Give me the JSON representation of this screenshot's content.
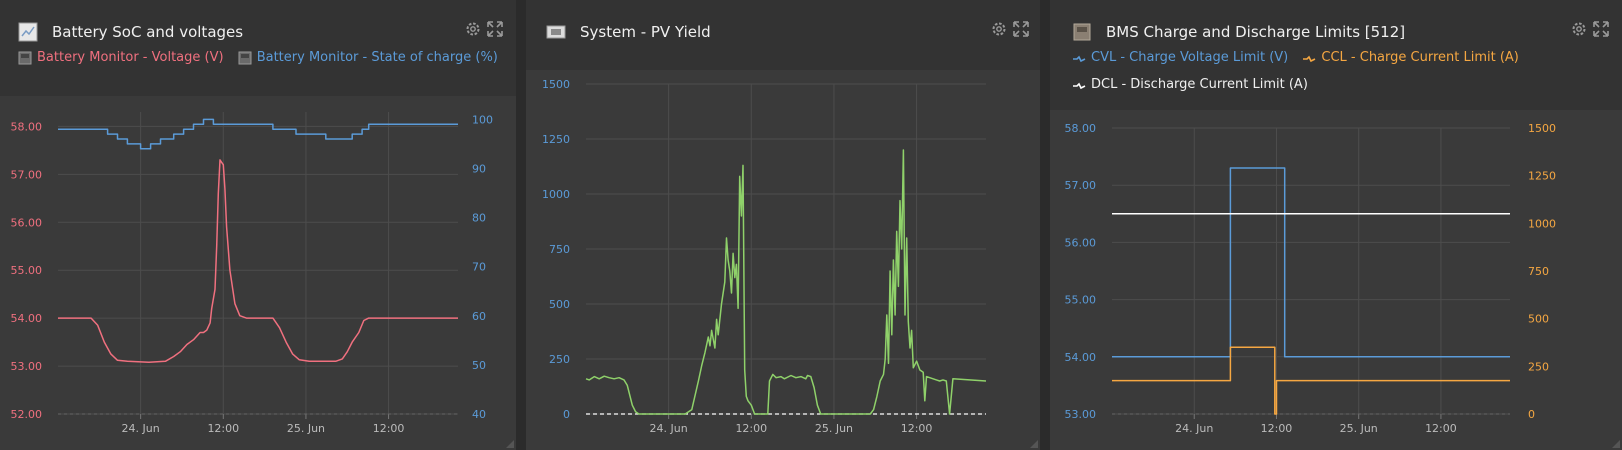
{
  "colors": {
    "voltage": "#f0707f",
    "soc": "#5b9bd8",
    "pv": "#8fd16a",
    "cvl": "#5b9bd8",
    "ccl": "#f5a742",
    "dcl": "#ffffff",
    "grid": "#4d4d4d",
    "tick": "#bbbbbb"
  },
  "panels": [
    {
      "id": "soc",
      "title": "Battery SoC and voltages",
      "icon": "chart-icon",
      "legend": [
        {
          "label": "Battery Monitor - Voltage (V)",
          "icon": "battery-monitor-icon",
          "color": "#f0707f"
        },
        {
          "label": "Battery Monitor - State of charge (%)",
          "icon": "battery-monitor-icon",
          "color": "#5b9bd8"
        }
      ]
    },
    {
      "id": "pv",
      "title": "System - PV Yield",
      "icon": "system-icon",
      "legend": []
    },
    {
      "id": "bms",
      "title": "BMS Charge and Discharge Limits [512]",
      "icon": "bms-icon",
      "legend": [
        {
          "label": "CVL - Charge Voltage Limit (V)",
          "icon": "line-icon",
          "color": "#5b9bd8"
        },
        {
          "label": "CCL - Charge Current Limit (A)",
          "icon": "line-icon",
          "color": "#f5a742"
        },
        {
          "label": "DCL - Discharge Current Limit (A)",
          "icon": "line-icon",
          "color": "#ffffff"
        }
      ]
    }
  ],
  "chart_data": [
    {
      "type": "line",
      "title": "Battery SoC and voltages",
      "xrange": [
        0,
        2.42
      ],
      "x_unit": "days from 23 Jun 12:00",
      "x_ticks": [
        {
          "x": 0.5,
          "label": "24. Jun"
        },
        {
          "x": 1.0,
          "label": "12:00"
        },
        {
          "x": 1.5,
          "label": "25. Jun"
        },
        {
          "x": 2.0,
          "label": "12:00"
        }
      ],
      "y_left": {
        "range": [
          52,
          58.3
        ],
        "ticks": [
          52,
          53,
          54,
          55,
          56,
          57,
          58
        ],
        "labels": [
          "52.00",
          "53.00",
          "54.00",
          "55.00",
          "56.00",
          "57.00",
          "58.00"
        ],
        "color": "#f0707f"
      },
      "y_right": {
        "range": [
          40,
          101.5
        ],
        "ticks": [
          40,
          50,
          60,
          70,
          80,
          90,
          100
        ],
        "labels": [
          "40",
          "50",
          "60",
          "70",
          "80",
          "90",
          "100"
        ],
        "color": "#5b9bd8"
      },
      "grid": true,
      "series": [
        {
          "name": "Battery Monitor - Voltage (V)",
          "axis": "left",
          "color": "#f0707f",
          "step": false,
          "points": [
            [
              0,
              54.0
            ],
            [
              0.2,
              54.0
            ],
            [
              0.24,
              53.85
            ],
            [
              0.28,
              53.5
            ],
            [
              0.32,
              53.25
            ],
            [
              0.36,
              53.12
            ],
            [
              0.42,
              53.1
            ],
            [
              0.55,
              53.08
            ],
            [
              0.65,
              53.1
            ],
            [
              0.7,
              53.2
            ],
            [
              0.74,
              53.3
            ],
            [
              0.78,
              53.45
            ],
            [
              0.82,
              53.55
            ],
            [
              0.86,
              53.7
            ],
            [
              0.88,
              53.7
            ],
            [
              0.9,
              53.75
            ],
            [
              0.92,
              53.9
            ],
            [
              0.93,
              54.2
            ],
            [
              0.95,
              54.6
            ],
            [
              0.96,
              55.5
            ],
            [
              0.97,
              56.6
            ],
            [
              0.98,
              57.3
            ],
            [
              0.99,
              57.25
            ],
            [
              1.0,
              57.2
            ],
            [
              1.01,
              56.7
            ],
            [
              1.02,
              55.9
            ],
            [
              1.04,
              55.0
            ],
            [
              1.07,
              54.3
            ],
            [
              1.1,
              54.05
            ],
            [
              1.14,
              54.0
            ],
            [
              1.3,
              54.0
            ],
            [
              1.34,
              53.8
            ],
            [
              1.38,
              53.5
            ],
            [
              1.42,
              53.25
            ],
            [
              1.46,
              53.13
            ],
            [
              1.52,
              53.1
            ],
            [
              1.68,
              53.1
            ],
            [
              1.72,
              53.15
            ],
            [
              1.75,
              53.3
            ],
            [
              1.78,
              53.5
            ],
            [
              1.82,
              53.7
            ],
            [
              1.85,
              53.95
            ],
            [
              1.88,
              54.0
            ],
            [
              2.0,
              54.0
            ],
            [
              2.42,
              54.0
            ]
          ]
        },
        {
          "name": "Battery Monitor - State of charge (%)",
          "axis": "right",
          "color": "#5b9bd8",
          "step": true,
          "points": [
            [
              0,
              98
            ],
            [
              0.3,
              98
            ],
            [
              0.3,
              97
            ],
            [
              0.36,
              97
            ],
            [
              0.36,
              96
            ],
            [
              0.42,
              96
            ],
            [
              0.42,
              95
            ],
            [
              0.5,
              95
            ],
            [
              0.5,
              94
            ],
            [
              0.56,
              94
            ],
            [
              0.56,
              95
            ],
            [
              0.62,
              95
            ],
            [
              0.62,
              96
            ],
            [
              0.7,
              96
            ],
            [
              0.7,
              97
            ],
            [
              0.76,
              97
            ],
            [
              0.76,
              98
            ],
            [
              0.82,
              98
            ],
            [
              0.82,
              99
            ],
            [
              0.88,
              99
            ],
            [
              0.88,
              100
            ],
            [
              0.94,
              100
            ],
            [
              0.94,
              99
            ],
            [
              1.3,
              99
            ],
            [
              1.3,
              98
            ],
            [
              1.44,
              98
            ],
            [
              1.44,
              97
            ],
            [
              1.62,
              97
            ],
            [
              1.62,
              96
            ],
            [
              1.78,
              96
            ],
            [
              1.78,
              97
            ],
            [
              1.84,
              97
            ],
            [
              1.84,
              98
            ],
            [
              1.88,
              98
            ],
            [
              1.88,
              99
            ],
            [
              2.42,
              99
            ]
          ]
        }
      ]
    },
    {
      "type": "line",
      "title": "System - PV Yield",
      "xrange": [
        0,
        2.42
      ],
      "x_unit": "days from 23 Jun 12:00",
      "x_ticks": [
        {
          "x": 0.5,
          "label": "24. Jun"
        },
        {
          "x": 1.0,
          "label": "12:00"
        },
        {
          "x": 1.5,
          "label": "25. Jun"
        },
        {
          "x": 2.0,
          "label": "12:00"
        }
      ],
      "y_left": {
        "range": [
          0,
          1500
        ],
        "ticks": [
          0,
          250,
          500,
          750,
          1000,
          1250,
          1500
        ],
        "labels": [
          "0",
          "250",
          "500",
          "750",
          "1000",
          "1250",
          "1500"
        ],
        "color": "#5b9bd8"
      },
      "grid": true,
      "baseline": 0,
      "series": [
        {
          "name": "PV Yield",
          "axis": "left",
          "color": "#8fd16a",
          "step": false,
          "points": [
            [
              0,
              160
            ],
            [
              0.02,
              155
            ],
            [
              0.05,
              170
            ],
            [
              0.08,
              160
            ],
            [
              0.11,
              172
            ],
            [
              0.14,
              165
            ],
            [
              0.17,
              160
            ],
            [
              0.2,
              165
            ],
            [
              0.23,
              155
            ],
            [
              0.25,
              130
            ],
            [
              0.28,
              40
            ],
            [
              0.3,
              10
            ],
            [
              0.32,
              0
            ],
            [
              0.6,
              0
            ],
            [
              0.64,
              20
            ],
            [
              0.68,
              150
            ],
            [
              0.7,
              220
            ],
            [
              0.72,
              280
            ],
            [
              0.74,
              350
            ],
            [
              0.75,
              310
            ],
            [
              0.76,
              380
            ],
            [
              0.78,
              300
            ],
            [
              0.79,
              430
            ],
            [
              0.8,
              360
            ],
            [
              0.82,
              500
            ],
            [
              0.84,
              600
            ],
            [
              0.85,
              800
            ],
            [
              0.86,
              700
            ],
            [
              0.87,
              650
            ],
            [
              0.88,
              550
            ],
            [
              0.89,
              730
            ],
            [
              0.9,
              620
            ],
            [
              0.91,
              680
            ],
            [
              0.92,
              480
            ],
            [
              0.93,
              1080
            ],
            [
              0.94,
              900
            ],
            [
              0.95,
              1130
            ],
            [
              0.96,
              200
            ],
            [
              0.97,
              80
            ],
            [
              0.98,
              60
            ],
            [
              1.0,
              40
            ],
            [
              1.02,
              0
            ],
            [
              1.1,
              0
            ],
            [
              1.11,
              150
            ],
            [
              1.13,
              180
            ],
            [
              1.15,
              165
            ],
            [
              1.18,
              170
            ],
            [
              1.2,
              160
            ],
            [
              1.24,
              175
            ],
            [
              1.27,
              165
            ],
            [
              1.3,
              170
            ],
            [
              1.33,
              160
            ],
            [
              1.34,
              175
            ],
            [
              1.36,
              170
            ],
            [
              1.38,
              120
            ],
            [
              1.4,
              40
            ],
            [
              1.42,
              0
            ],
            [
              1.72,
              0
            ],
            [
              1.74,
              20
            ],
            [
              1.76,
              80
            ],
            [
              1.78,
              150
            ],
            [
              1.8,
              180
            ],
            [
              1.81,
              250
            ],
            [
              1.82,
              450
            ],
            [
              1.83,
              230
            ],
            [
              1.84,
              650
            ],
            [
              1.85,
              360
            ],
            [
              1.86,
              700
            ],
            [
              1.87,
              450
            ],
            [
              1.88,
              830
            ],
            [
              1.89,
              580
            ],
            [
              1.9,
              970
            ],
            [
              1.91,
              750
            ],
            [
              1.92,
              1200
            ],
            [
              1.93,
              450
            ],
            [
              1.94,
              800
            ],
            [
              1.95,
              420
            ],
            [
              1.96,
              300
            ],
            [
              1.97,
              380
            ],
            [
              1.98,
              210
            ],
            [
              2.0,
              240
            ],
            [
              2.02,
              200
            ],
            [
              2.04,
              190
            ],
            [
              2.05,
              60
            ],
            [
              2.06,
              170
            ],
            [
              2.08,
              165
            ],
            [
              2.1,
              160
            ],
            [
              2.12,
              155
            ],
            [
              2.14,
              150
            ],
            [
              2.16,
              155
            ],
            [
              2.18,
              150
            ],
            [
              2.2,
              0
            ],
            [
              2.22,
              160
            ],
            [
              2.42,
              150
            ]
          ]
        }
      ]
    },
    {
      "type": "line",
      "title": "BMS Charge and Discharge Limits [512]",
      "xrange": [
        0,
        2.42
      ],
      "x_unit": "days from 23 Jun 12:00",
      "x_ticks": [
        {
          "x": 0.5,
          "label": "24. Jun"
        },
        {
          "x": 1.0,
          "label": "12:00"
        },
        {
          "x": 1.5,
          "label": "25. Jun"
        },
        {
          "x": 2.0,
          "label": "12:00"
        }
      ],
      "y_left": {
        "range": [
          53,
          58
        ],
        "ticks": [
          53,
          54,
          55,
          56,
          57,
          58
        ],
        "labels": [
          "53.00",
          "54.00",
          "55.00",
          "56.00",
          "57.00",
          "58.00"
        ],
        "color": "#5b9bd8"
      },
      "y_right": {
        "range": [
          0,
          1500
        ],
        "ticks": [
          0,
          250,
          500,
          750,
          1000,
          1250,
          1500
        ],
        "labels": [
          "0",
          "250",
          "500",
          "750",
          "1000",
          "1250",
          "1500"
        ],
        "color": "#f5a742"
      },
      "grid": true,
      "series": [
        {
          "name": "CVL - Charge Voltage Limit (V)",
          "axis": "left",
          "color": "#5b9bd8",
          "step": true,
          "points": [
            [
              0,
              54.0
            ],
            [
              0.72,
              54.0
            ],
            [
              0.72,
              57.3
            ],
            [
              1.05,
              57.3
            ],
            [
              1.05,
              54.0
            ],
            [
              2.42,
              54.0
            ]
          ]
        },
        {
          "name": "CCL - Charge Current Limit (A)",
          "axis": "right",
          "color": "#f5a742",
          "step": true,
          "points": [
            [
              0,
              175
            ],
            [
              0.72,
              175
            ],
            [
              0.72,
              350
            ],
            [
              0.99,
              350
            ],
            [
              0.99,
              0
            ],
            [
              1.0,
              0
            ],
            [
              1.0,
              175
            ],
            [
              2.42,
              175
            ]
          ]
        },
        {
          "name": "DCL - Discharge Current Limit (A)",
          "axis": "right",
          "color": "#ffffff",
          "step": true,
          "points": [
            [
              0,
              1050
            ],
            [
              2.42,
              1050
            ]
          ]
        }
      ]
    }
  ]
}
